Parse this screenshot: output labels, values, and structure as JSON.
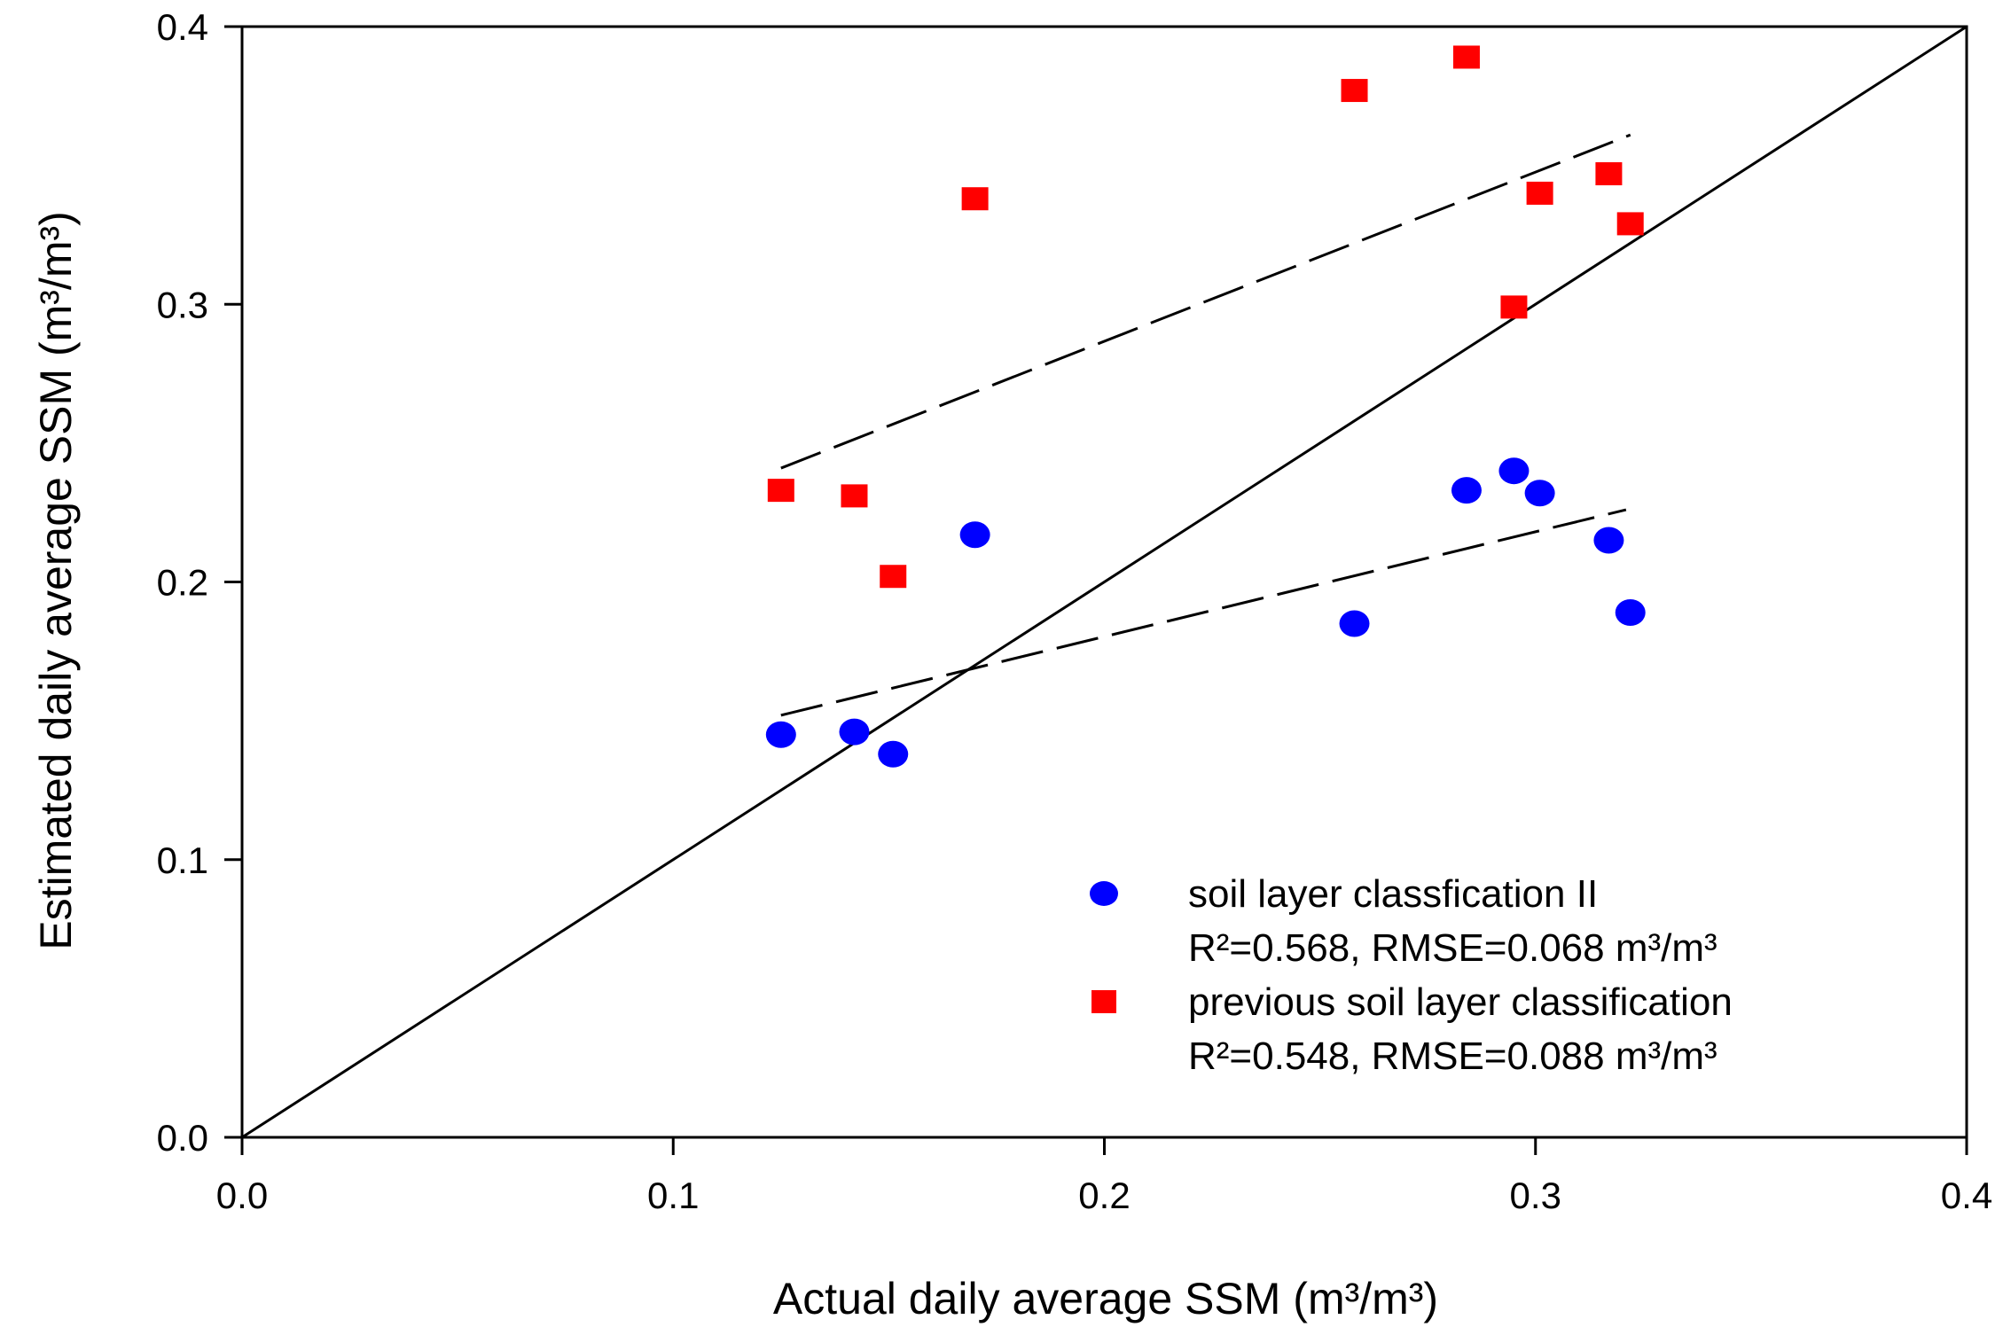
{
  "chart_data": {
    "type": "scatter",
    "title": "",
    "xlabel": "Actual daily average SSM (m³/m³)",
    "ylabel": "Estimated daily average SSM (m³/m³)",
    "xlim": [
      0.0,
      0.4
    ],
    "ylim": [
      0.0,
      0.4
    ],
    "xticks": [
      "0.0",
      "0.1",
      "0.2",
      "0.3",
      "0.4"
    ],
    "yticks": [
      "0.0",
      "0.1",
      "0.2",
      "0.3",
      "0.4"
    ],
    "grid": false,
    "legend_position": "bottom-right",
    "series": [
      {
        "name": "soil layer classfication II",
        "stats": "R²=0.568, RMSE=0.068 m³/m³",
        "marker": "circle",
        "color": "#0000ff",
        "points": [
          {
            "x": 0.125,
            "y": 0.145
          },
          {
            "x": 0.142,
            "y": 0.146
          },
          {
            "x": 0.151,
            "y": 0.138
          },
          {
            "x": 0.17,
            "y": 0.217
          },
          {
            "x": 0.258,
            "y": 0.185
          },
          {
            "x": 0.284,
            "y": 0.233
          },
          {
            "x": 0.295,
            "y": 0.24
          },
          {
            "x": 0.301,
            "y": 0.232
          },
          {
            "x": 0.317,
            "y": 0.215
          },
          {
            "x": 0.322,
            "y": 0.189
          }
        ],
        "fit_line": {
          "x": [
            0.125,
            0.321
          ],
          "y": [
            0.152,
            0.226
          ]
        }
      },
      {
        "name": "previous soil layer classification",
        "stats": "R²=0.548, RMSE=0.088 m³/m³",
        "marker": "square",
        "color": "#ff0000",
        "points": [
          {
            "x": 0.125,
            "y": 0.233
          },
          {
            "x": 0.142,
            "y": 0.231
          },
          {
            "x": 0.151,
            "y": 0.202
          },
          {
            "x": 0.17,
            "y": 0.338
          },
          {
            "x": 0.258,
            "y": 0.377
          },
          {
            "x": 0.284,
            "y": 0.389
          },
          {
            "x": 0.295,
            "y": 0.299
          },
          {
            "x": 0.301,
            "y": 0.34
          },
          {
            "x": 0.317,
            "y": 0.347
          },
          {
            "x": 0.322,
            "y": 0.329
          }
        ],
        "fit_line": {
          "x": [
            0.125,
            0.322
          ],
          "y": [
            0.241,
            0.361
          ]
        }
      }
    ],
    "reference_line": {
      "x": [
        0.0,
        0.4
      ],
      "y": [
        0.0,
        0.4
      ],
      "style": "solid"
    }
  }
}
